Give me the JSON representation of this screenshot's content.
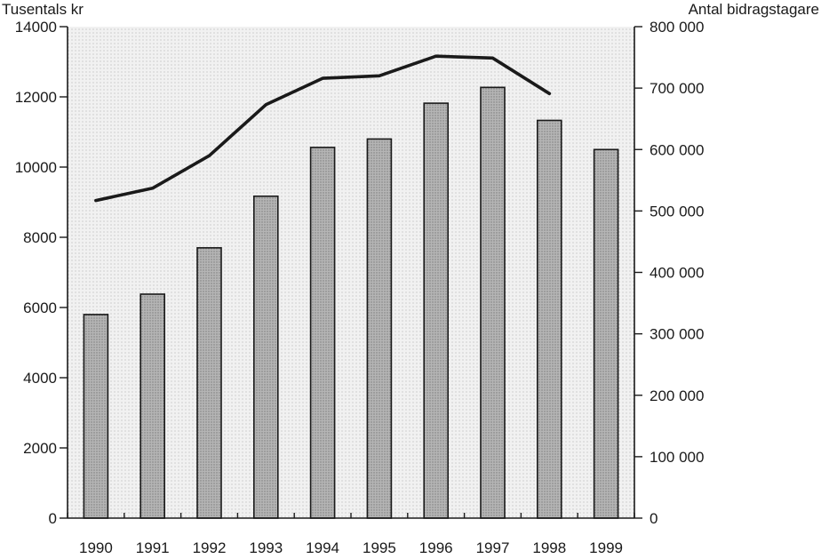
{
  "chart_data": {
    "type": "bar",
    "title": "",
    "categories": [
      "1990",
      "1991",
      "1992",
      "1993",
      "1994",
      "1995",
      "1996",
      "1997",
      "1998",
      "1999"
    ],
    "xlabel": "",
    "ylabel": "Tusentals kr",
    "ylabel_right": "Antal bidragstagare",
    "ylim": [
      0,
      14000
    ],
    "ylim_right": [
      0,
      800000
    ],
    "yticks": [
      0,
      2000,
      4000,
      6000,
      8000,
      10000,
      12000,
      14000
    ],
    "yticks_labels": [
      "0",
      "2000",
      "4000",
      "6000",
      "8000",
      "10000",
      "12000",
      "14000"
    ],
    "yticks_right": [
      0,
      100000,
      200000,
      300000,
      400000,
      500000,
      600000,
      700000,
      800000
    ],
    "yticks_right_labels": [
      "0",
      "100 000",
      "200 000",
      "300 000",
      "400 000",
      "500 000",
      "600 000",
      "700 000",
      "800 000"
    ],
    "grid": false,
    "legend": "none",
    "series": [
      {
        "type": "bar",
        "axis": "left",
        "values": [
          5800,
          6380,
          7700,
          9170,
          10560,
          10800,
          11820,
          12270,
          11330,
          10500
        ],
        "color": "#a8a8a8"
      },
      {
        "type": "line",
        "axis": "right",
        "values": [
          517000,
          537000,
          590000,
          673000,
          716000,
          720000,
          752000,
          749000,
          691000,
          null
        ],
        "color": "#1a1a1a"
      }
    ],
    "colors": {
      "background": "#ffffff",
      "plot_background": "#efefef",
      "bar_fill": "#a8a8a8",
      "bar_stroke": "#1a1a1a",
      "line": "#1a1a1a",
      "axis": "#1a1a1a"
    }
  }
}
